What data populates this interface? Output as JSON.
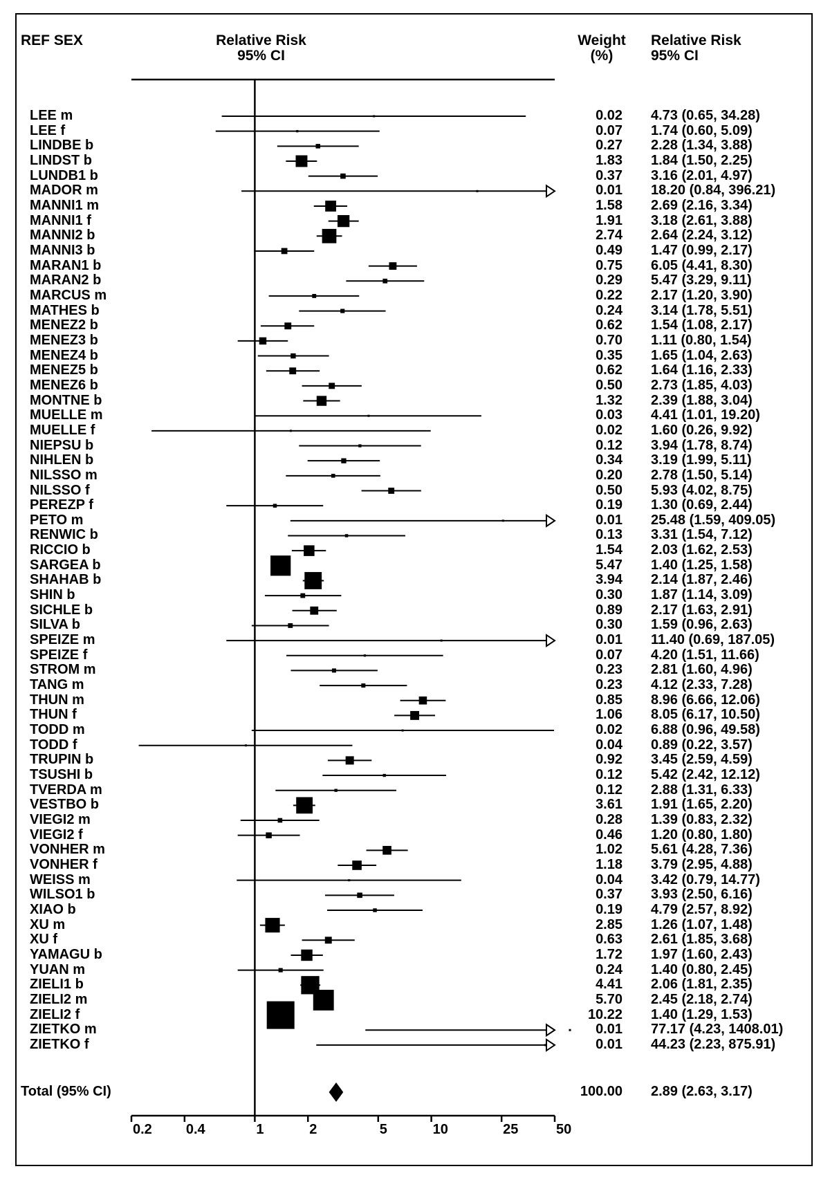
{
  "header": {
    "col_study": "REF SEX",
    "col_plot_line1": "Relative Risk",
    "col_plot_line2": "95% CI",
    "col_weight_line1": "Weight",
    "col_weight_line2": "(%)",
    "col_rr_line1": "Relative Risk",
    "col_rr_line2": "95% CI"
  },
  "chart_data": {
    "type": "forest",
    "x_scale": "log",
    "xlim": [
      0.2,
      50
    ],
    "x_ticks": [
      "0.2",
      "0.4",
      "1",
      "2",
      "5",
      "10",
      "25",
      "50"
    ],
    "reference_line": 1,
    "rows": [
      {
        "study": "LEE m",
        "rr": 4.73,
        "lo": 0.65,
        "hi": 34.28,
        "weight": "0.02",
        "ci_text": "4.73 (0.65, 34.28)"
      },
      {
        "study": "LEE f",
        "rr": 1.74,
        "lo": 0.6,
        "hi": 5.09,
        "weight": "0.07",
        "ci_text": "1.74 (0.60, 5.09)"
      },
      {
        "study": "LINDBE b",
        "rr": 2.28,
        "lo": 1.34,
        "hi": 3.88,
        "weight": "0.27",
        "ci_text": "2.28 (1.34, 3.88)"
      },
      {
        "study": "LINDST b",
        "rr": 1.84,
        "lo": 1.5,
        "hi": 2.25,
        "weight": "1.83",
        "ci_text": "1.84 (1.50, 2.25)"
      },
      {
        "study": "LUNDB1 b",
        "rr": 3.16,
        "lo": 2.01,
        "hi": 4.97,
        "weight": "0.37",
        "ci_text": "3.16 (2.01, 4.97)"
      },
      {
        "study": "MADOR m",
        "rr": 18.2,
        "lo": 0.84,
        "hi": 396.21,
        "weight": "0.01",
        "ci_text": "18.20 (0.84, 396.21)"
      },
      {
        "study": "MANNI1 m",
        "rr": 2.69,
        "lo": 2.16,
        "hi": 3.34,
        "weight": "1.58",
        "ci_text": "2.69 (2.16, 3.34)"
      },
      {
        "study": "MANNI1 f",
        "rr": 3.18,
        "lo": 2.61,
        "hi": 3.88,
        "weight": "1.91",
        "ci_text": "3.18 (2.61, 3.88)"
      },
      {
        "study": "MANNI2 b",
        "rr": 2.64,
        "lo": 2.24,
        "hi": 3.12,
        "weight": "2.74",
        "ci_text": "2.64 (2.24, 3.12)"
      },
      {
        "study": "MANNI3 b",
        "rr": 1.47,
        "lo": 0.99,
        "hi": 2.17,
        "weight": "0.49",
        "ci_text": "1.47 (0.99, 2.17)"
      },
      {
        "study": "MARAN1 b",
        "rr": 6.05,
        "lo": 4.41,
        "hi": 8.3,
        "weight": "0.75",
        "ci_text": "6.05 (4.41, 8.30)"
      },
      {
        "study": "MARAN2 b",
        "rr": 5.47,
        "lo": 3.29,
        "hi": 9.11,
        "weight": "0.29",
        "ci_text": "5.47 (3.29, 9.11)"
      },
      {
        "study": "MARCUS m",
        "rr": 2.17,
        "lo": 1.2,
        "hi": 3.9,
        "weight": "0.22",
        "ci_text": "2.17 (1.20, 3.90)"
      },
      {
        "study": "MATHES b",
        "rr": 3.14,
        "lo": 1.78,
        "hi": 5.51,
        "weight": "0.24",
        "ci_text": "3.14 (1.78, 5.51)"
      },
      {
        "study": "MENEZ2 b",
        "rr": 1.54,
        "lo": 1.08,
        "hi": 2.17,
        "weight": "0.62",
        "ci_text": "1.54 (1.08, 2.17)"
      },
      {
        "study": "MENEZ3 b",
        "rr": 1.11,
        "lo": 0.8,
        "hi": 1.54,
        "weight": "0.70",
        "ci_text": "1.11 (0.80, 1.54)"
      },
      {
        "study": "MENEZ4 b",
        "rr": 1.65,
        "lo": 1.04,
        "hi": 2.63,
        "weight": "0.35",
        "ci_text": "1.65 (1.04, 2.63)"
      },
      {
        "study": "MENEZ5 b",
        "rr": 1.64,
        "lo": 1.16,
        "hi": 2.33,
        "weight": "0.62",
        "ci_text": "1.64 (1.16, 2.33)"
      },
      {
        "study": "MENEZ6 b",
        "rr": 2.73,
        "lo": 1.85,
        "hi": 4.03,
        "weight": "0.50",
        "ci_text": "2.73 (1.85, 4.03)"
      },
      {
        "study": "MONTNE b",
        "rr": 2.39,
        "lo": 1.88,
        "hi": 3.04,
        "weight": "1.32",
        "ci_text": "2.39 (1.88, 3.04)"
      },
      {
        "study": "MUELLE m",
        "rr": 4.41,
        "lo": 1.01,
        "hi": 19.2,
        "weight": "0.03",
        "ci_text": "4.41 (1.01, 19.20)"
      },
      {
        "study": "MUELLE f",
        "rr": 1.6,
        "lo": 0.26,
        "hi": 9.92,
        "weight": "0.02",
        "ci_text": "1.60 (0.26, 9.92)"
      },
      {
        "study": "NIEPSU b",
        "rr": 3.94,
        "lo": 1.78,
        "hi": 8.74,
        "weight": "0.12",
        "ci_text": "3.94 (1.78, 8.74)"
      },
      {
        "study": "NIHLEN b",
        "rr": 3.19,
        "lo": 1.99,
        "hi": 5.11,
        "weight": "0.34",
        "ci_text": "3.19 (1.99, 5.11)"
      },
      {
        "study": "NILSSO m",
        "rr": 2.78,
        "lo": 1.5,
        "hi": 5.14,
        "weight": "0.20",
        "ci_text": "2.78 (1.50, 5.14)"
      },
      {
        "study": "NILSSO f",
        "rr": 5.93,
        "lo": 4.02,
        "hi": 8.75,
        "weight": "0.50",
        "ci_text": "5.93 (4.02, 8.75)"
      },
      {
        "study": "PEREZP f",
        "rr": 1.3,
        "lo": 0.69,
        "hi": 2.44,
        "weight": "0.19",
        "ci_text": "1.30 (0.69, 2.44)"
      },
      {
        "study": "PETO m",
        "rr": 25.48,
        "lo": 1.59,
        "hi": 409.05,
        "weight": "0.01",
        "ci_text": "25.48 (1.59, 409.05)"
      },
      {
        "study": "RENWIC b",
        "rr": 3.31,
        "lo": 1.54,
        "hi": 7.12,
        "weight": "0.13",
        "ci_text": "3.31 (1.54, 7.12)"
      },
      {
        "study": "RICCIO b",
        "rr": 2.03,
        "lo": 1.62,
        "hi": 2.53,
        "weight": "1.54",
        "ci_text": "2.03 (1.62, 2.53)"
      },
      {
        "study": "SARGEA b",
        "rr": 1.4,
        "lo": 1.25,
        "hi": 1.58,
        "weight": "5.47",
        "ci_text": "1.40 (1.25, 1.58)"
      },
      {
        "study": "SHAHAB b",
        "rr": 2.14,
        "lo": 1.87,
        "hi": 2.46,
        "weight": "3.94",
        "ci_text": "2.14 (1.87, 2.46)"
      },
      {
        "study": "SHIN b",
        "rr": 1.87,
        "lo": 1.14,
        "hi": 3.09,
        "weight": "0.30",
        "ci_text": "1.87 (1.14, 3.09)"
      },
      {
        "study": "SICHLE b",
        "rr": 2.17,
        "lo": 1.63,
        "hi": 2.91,
        "weight": "0.89",
        "ci_text": "2.17 (1.63, 2.91)"
      },
      {
        "study": "SILVA b",
        "rr": 1.59,
        "lo": 0.96,
        "hi": 2.63,
        "weight": "0.30",
        "ci_text": "1.59 (0.96, 2.63)"
      },
      {
        "study": "SPEIZE m",
        "rr": 11.4,
        "lo": 0.69,
        "hi": 187.05,
        "weight": "0.01",
        "ci_text": "11.40 (0.69, 187.05)"
      },
      {
        "study": "SPEIZE f",
        "rr": 4.2,
        "lo": 1.51,
        "hi": 11.66,
        "weight": "0.07",
        "ci_text": "4.20 (1.51, 11.66)"
      },
      {
        "study": "STROM m",
        "rr": 2.81,
        "lo": 1.6,
        "hi": 4.96,
        "weight": "0.23",
        "ci_text": "2.81 (1.60, 4.96)"
      },
      {
        "study": "TANG m",
        "rr": 4.12,
        "lo": 2.33,
        "hi": 7.28,
        "weight": "0.23",
        "ci_text": "4.12 (2.33, 7.28)"
      },
      {
        "study": "THUN m",
        "rr": 8.96,
        "lo": 6.66,
        "hi": 12.06,
        "weight": "0.85",
        "ci_text": "8.96 (6.66, 12.06)"
      },
      {
        "study": "THUN f",
        "rr": 8.05,
        "lo": 6.17,
        "hi": 10.5,
        "weight": "1.06",
        "ci_text": "8.05 (6.17, 10.50)"
      },
      {
        "study": "TODD m",
        "rr": 6.88,
        "lo": 0.96,
        "hi": 49.58,
        "weight": "0.02",
        "ci_text": "6.88 (0.96, 49.58)"
      },
      {
        "study": "TODD f",
        "rr": 0.89,
        "lo": 0.22,
        "hi": 3.57,
        "weight": "0.04",
        "ci_text": "0.89 (0.22, 3.57)"
      },
      {
        "study": "TRUPIN b",
        "rr": 3.45,
        "lo": 2.59,
        "hi": 4.59,
        "weight": "0.92",
        "ci_text": "3.45 (2.59, 4.59)"
      },
      {
        "study": "TSUSHI b",
        "rr": 5.42,
        "lo": 2.42,
        "hi": 12.12,
        "weight": "0.12",
        "ci_text": "5.42 (2.42, 12.12)"
      },
      {
        "study": "TVERDA m",
        "rr": 2.88,
        "lo": 1.31,
        "hi": 6.33,
        "weight": "0.12",
        "ci_text": "2.88 (1.31, 6.33)"
      },
      {
        "study": "VESTBO b",
        "rr": 1.91,
        "lo": 1.65,
        "hi": 2.2,
        "weight": "3.61",
        "ci_text": "1.91 (1.65, 2.20)"
      },
      {
        "study": "VIEGI2 m",
        "rr": 1.39,
        "lo": 0.83,
        "hi": 2.32,
        "weight": "0.28",
        "ci_text": "1.39 (0.83, 2.32)"
      },
      {
        "study": "VIEGI2 f",
        "rr": 1.2,
        "lo": 0.8,
        "hi": 1.8,
        "weight": "0.46",
        "ci_text": "1.20 (0.80, 1.80)"
      },
      {
        "study": "VONHER m",
        "rr": 5.61,
        "lo": 4.28,
        "hi": 7.36,
        "weight": "1.02",
        "ci_text": "5.61 (4.28, 7.36)"
      },
      {
        "study": "VONHER f",
        "rr": 3.79,
        "lo": 2.95,
        "hi": 4.88,
        "weight": "1.18",
        "ci_text": "3.79 (2.95, 4.88)"
      },
      {
        "study": "WEISS m",
        "rr": 3.42,
        "lo": 0.79,
        "hi": 14.77,
        "weight": "0.04",
        "ci_text": "3.42 (0.79, 14.77)"
      },
      {
        "study": "WILSO1 b",
        "rr": 3.93,
        "lo": 2.5,
        "hi": 6.16,
        "weight": "0.37",
        "ci_text": "3.93 (2.50, 6.16)"
      },
      {
        "study": "XIAO b",
        "rr": 4.79,
        "lo": 2.57,
        "hi": 8.92,
        "weight": "0.19",
        "ci_text": "4.79 (2.57, 8.92)"
      },
      {
        "study": "XU m",
        "rr": 1.26,
        "lo": 1.07,
        "hi": 1.48,
        "weight": "2.85",
        "ci_text": "1.26 (1.07, 1.48)"
      },
      {
        "study": "XU f",
        "rr": 2.61,
        "lo": 1.85,
        "hi": 3.68,
        "weight": "0.63",
        "ci_text": "2.61 (1.85, 3.68)"
      },
      {
        "study": "YAMAGU b",
        "rr": 1.97,
        "lo": 1.6,
        "hi": 2.43,
        "weight": "1.72",
        "ci_text": "1.97 (1.60, 2.43)"
      },
      {
        "study": "YUAN m",
        "rr": 1.4,
        "lo": 0.8,
        "hi": 2.45,
        "weight": "0.24",
        "ci_text": "1.40 (0.80, 2.45)"
      },
      {
        "study": "ZIELI1 b",
        "rr": 2.06,
        "lo": 1.81,
        "hi": 2.35,
        "weight": "4.41",
        "ci_text": "2.06 (1.81, 2.35)"
      },
      {
        "study": "ZIELI2 m",
        "rr": 2.45,
        "lo": 2.18,
        "hi": 2.74,
        "weight": "5.70",
        "ci_text": "2.45 (2.18, 2.74)"
      },
      {
        "study": "ZIELI2 f",
        "rr": 1.4,
        "lo": 1.29,
        "hi": 1.53,
        "weight": "10.22",
        "ci_text": "1.40 (1.29, 1.53)"
      },
      {
        "study": "ZIETKO m",
        "rr": 77.17,
        "lo": 4.23,
        "hi": 1408.01,
        "weight": "0.01",
        "ci_text": "77.17 (4.23, 1408.01)"
      },
      {
        "study": "ZIETKO f",
        "rr": 44.23,
        "lo": 2.23,
        "hi": 875.91,
        "weight": "0.01",
        "ci_text": "44.23 (2.23, 875.91)"
      }
    ],
    "total": {
      "label": "Total (95% CI)",
      "rr": 2.89,
      "lo": 2.63,
      "hi": 3.17,
      "weight": "100.00",
      "ci_text": "2.89 (2.63, 3.17)"
    }
  }
}
